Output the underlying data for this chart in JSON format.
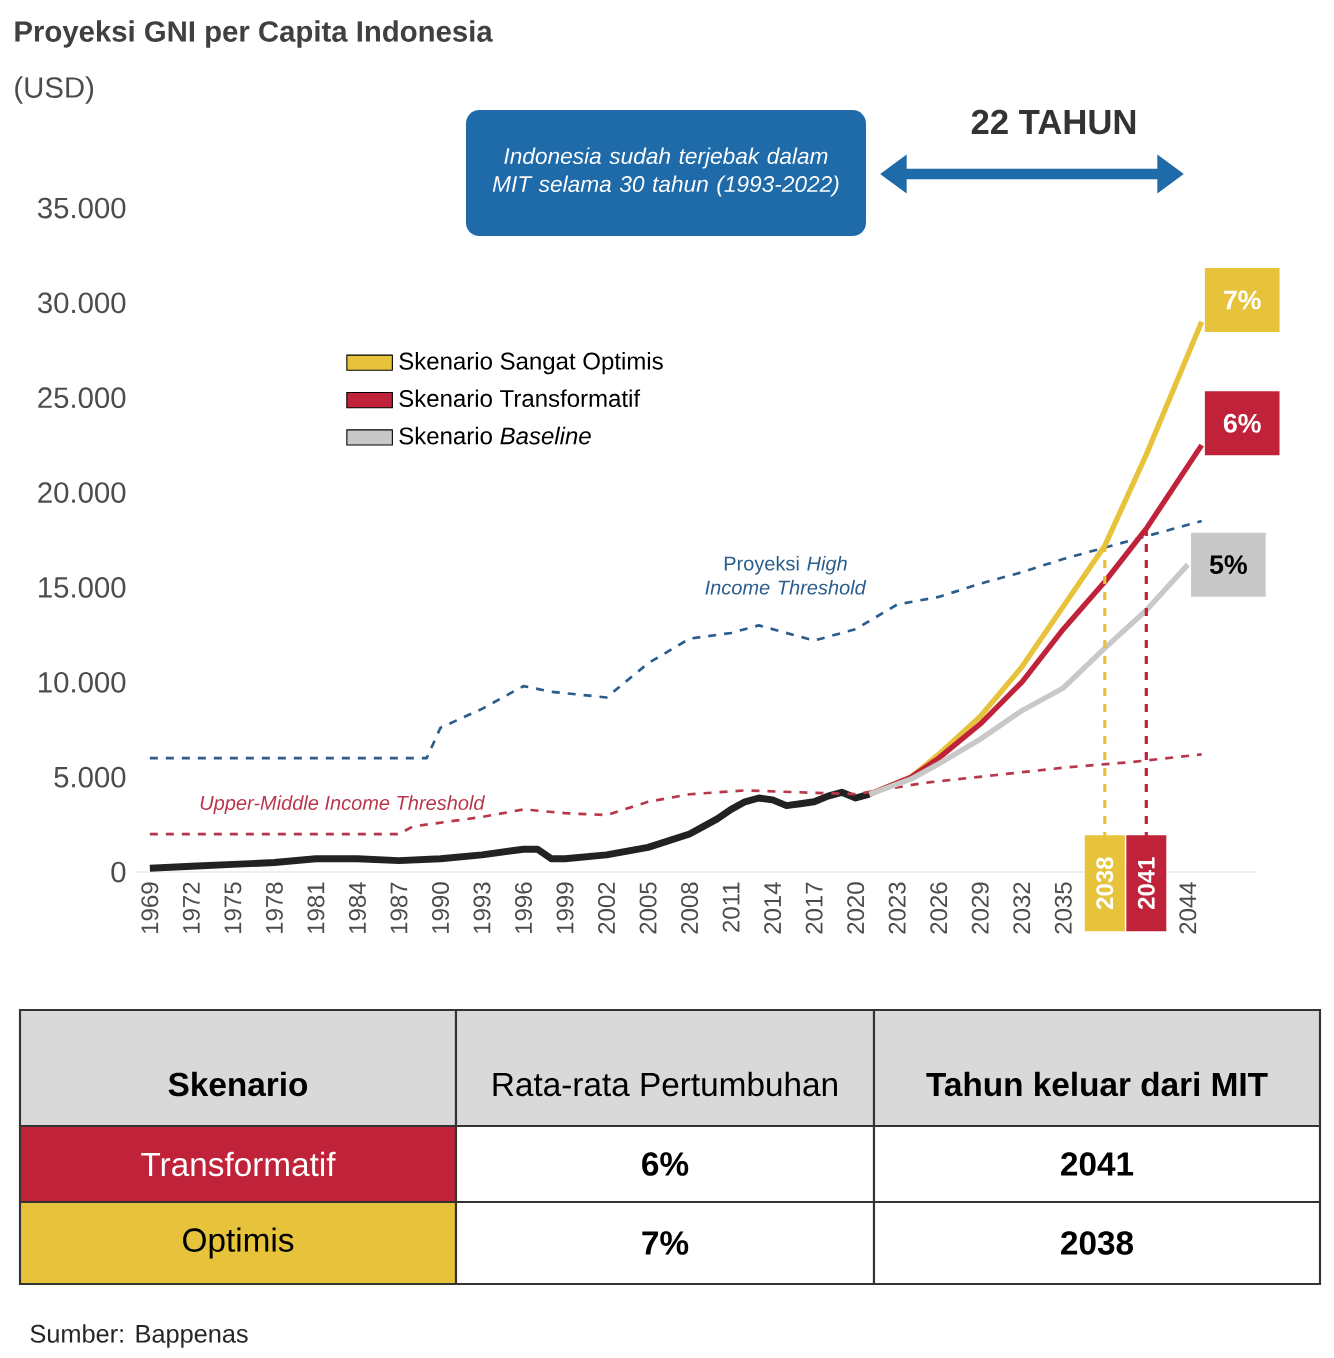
{
  "chart_data": {
    "type": "line",
    "title": "Proyeksi GNI per Capita Indonesia",
    "ylabel": "(USD)",
    "xlim": [
      1968,
      2049
    ],
    "ylim": [
      0,
      35000
    ],
    "xticks": [
      1969,
      1972,
      1975,
      1978,
      1981,
      1984,
      1987,
      1990,
      1993,
      1996,
      1999,
      2002,
      2005,
      2008,
      2011,
      2014,
      2017,
      2020,
      2023,
      2026,
      2029,
      2032,
      2035,
      2044
    ],
    "yticks": [
      {
        "value": 0,
        "label": "0"
      },
      {
        "value": 5000,
        "label": "5.000"
      },
      {
        "value": 10000,
        "label": "10.000"
      },
      {
        "value": 15000,
        "label": "15.000"
      },
      {
        "value": 20000,
        "label": "20.000"
      },
      {
        "value": 25000,
        "label": "25.000"
      },
      {
        "value": 30000,
        "label": "30.000"
      },
      {
        "value": 35000,
        "label": "35.000"
      }
    ],
    "legend": "top left",
    "series": [
      {
        "color": "#222222",
        "x": [
          1969,
          1972,
          1975,
          1978,
          1981,
          1984,
          1987,
          1990,
          1993,
          1996,
          1997,
          1998,
          1999,
          2002,
          2005,
          2008,
          2010,
          2011,
          2012,
          2013,
          2014,
          2015,
          2016,
          2017,
          2018,
          2019,
          2020,
          2021
        ],
        "values": [
          200,
          300,
          400,
          500,
          700,
          700,
          600,
          700,
          900,
          1200,
          1200,
          700,
          700,
          900,
          1300,
          2000,
          2800,
          3300,
          3700,
          3900,
          3800,
          3500,
          3600,
          3700,
          4000,
          4200,
          3900,
          4100
        ]
      },
      {
        "name": "Proyeksi *High Income Threshold*",
        "color": "#2a5d8c",
        "line_style": "dashed",
        "x": [
          1969,
          1989,
          1990,
          1993,
          1996,
          1998,
          2002,
          2005,
          2008,
          2011,
          2013,
          2017,
          2020,
          2023,
          2026,
          2029,
          2032,
          2035,
          2038,
          2041,
          2045
        ],
        "values": [
          6000,
          6000,
          7600,
          8600,
          9800,
          9500,
          9200,
          11000,
          12300,
          12600,
          13000,
          12200,
          12800,
          14100,
          14500,
          15200,
          15800,
          16500,
          17100,
          17700,
          18500
        ]
      },
      {
        "name": "Upper-Middle Income Threshold",
        "color": "#b8374a",
        "line_style": "dashed",
        "x": [
          1969,
          1987,
          1988,
          1993,
          1996,
          1999,
          2002,
          2005,
          2008,
          2012,
          2020,
          2025,
          2030,
          2035,
          2040,
          2045
        ],
        "values": [
          2000,
          2000,
          2400,
          2900,
          3300,
          3100,
          3000,
          3700,
          4100,
          4300,
          4100,
          4700,
          5100,
          5500,
          5800,
          6200
        ]
      },
      {
        "name": "Skenario Sangat Optimis",
        "color": "#e6c33a",
        "x": [
          2021,
          2024,
          2026,
          2029,
          2032,
          2035,
          2038,
          2041,
          2045
        ],
        "values": [
          4100,
          5000,
          6200,
          8200,
          10800,
          14000,
          17200,
          22000,
          29000
        ]
      },
      {
        "name": "Skenario Transformatif",
        "color": "#c0223a",
        "x": [
          2021,
          2024,
          2026,
          2029,
          2032,
          2035,
          2038,
          2041,
          2045
        ],
        "values": [
          4100,
          5000,
          6000,
          7800,
          10000,
          12800,
          15300,
          18100,
          22500
        ]
      },
      {
        "name": "Skenario *Baseline*",
        "color": "#c8c8c8",
        "x": [
          2021,
          2024,
          2026,
          2029,
          2032,
          2035,
          2038,
          2041,
          2044
        ],
        "values": [
          4100,
          4900,
          5700,
          7000,
          8500,
          9700,
          11800,
          13800,
          16200
        ]
      }
    ],
    "ref_lines": [
      {
        "axis": "x",
        "value": 2038,
        "label": "2038",
        "color": "#e6c33a",
        "line_style": "dashed"
      },
      {
        "axis": "x",
        "value": 2041,
        "label": "2041",
        "color": "#c0223a",
        "line_style": "dashed"
      }
    ],
    "annotations": [
      "Indonesia sudah terjebak dalam MIT selama 30 tahun (1993-2022)",
      "22 TAHUN",
      "Skenario",
      "Rata-rata Pertumbuhan",
      "Tahun keluar dari MIT",
      "Transformatif",
      "6%",
      "2041",
      "Optimis",
      "7%",
      "2038",
      "Sumber:  Bappenas",
      "7%",
      "6%",
      "5%"
    ]
  }
}
